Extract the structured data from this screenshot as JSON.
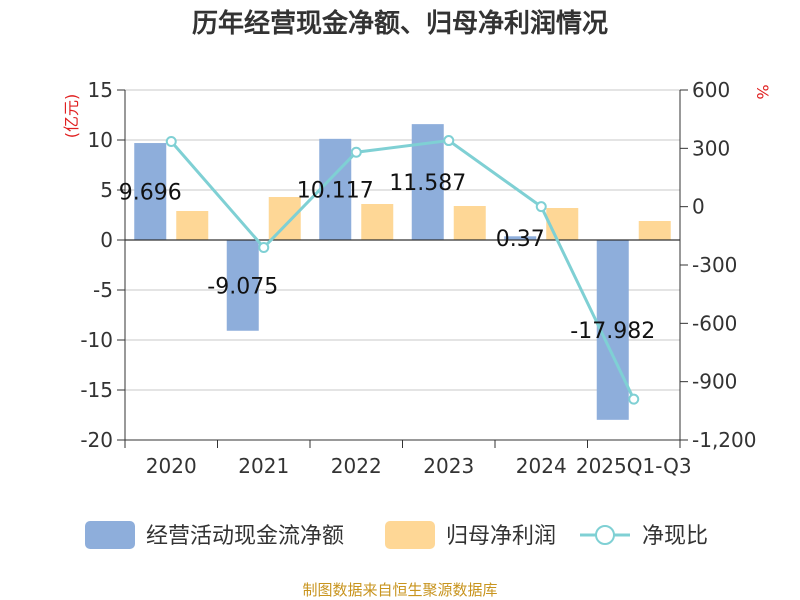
{
  "chart_data": {
    "type": "bar",
    "title": "历年经营现金净额、归母净利润情况",
    "categories": [
      "2020",
      "2021",
      "2022",
      "2023",
      "2024",
      "2025Q1-Q3"
    ],
    "series": [
      {
        "name": "经营活动现金流净额",
        "type": "bar",
        "axis": "left",
        "color": "#8eaedb",
        "values": [
          9.696,
          -9.075,
          10.117,
          11.587,
          0.37,
          -17.982
        ]
      },
      {
        "name": "归母净利润",
        "type": "bar",
        "axis": "left",
        "color": "#fed796",
        "values": [
          2.9,
          4.3,
          3.6,
          3.4,
          3.2,
          1.9
        ]
      },
      {
        "name": "净现比",
        "type": "line",
        "axis": "right",
        "color": "#7fd0d4",
        "values": [
          335,
          -210,
          280,
          340,
          0,
          -990
        ]
      }
    ],
    "data_labels": [
      "9.696",
      "-9.075",
      "10.117",
      "11.587",
      "0.37",
      "-17.982"
    ],
    "left_axis": {
      "unit": "(亿元)",
      "ylim": [
        -20,
        15
      ],
      "ticks": [
        15,
        10,
        5,
        0,
        -5,
        -10,
        -15,
        -20
      ]
    },
    "right_axis": {
      "unit": "%",
      "ylim": [
        -1200,
        600
      ],
      "ticks": [
        600,
        300,
        0,
        -300,
        -600,
        -900,
        -1200
      ],
      "tick_labels": [
        "600",
        "300",
        "0",
        "-300",
        "-600",
        "-900",
        "-1,200"
      ]
    },
    "grid": true,
    "legend_position": "bottom"
  },
  "source": "制图数据来自恒生聚源数据库",
  "colors": {
    "unit_red": "#e02020",
    "source_gold": "#c8941e",
    "axis": "#333333",
    "grid": "#c8c8c8"
  }
}
